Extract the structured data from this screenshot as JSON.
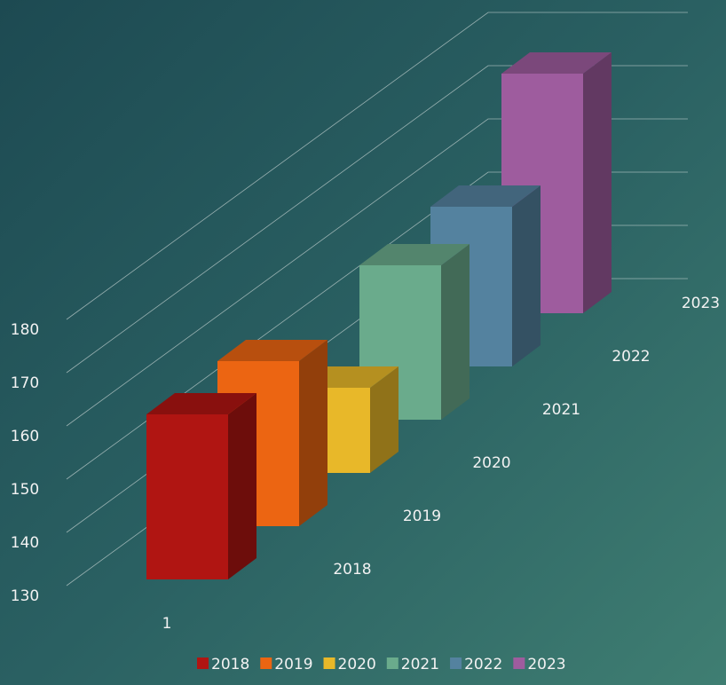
{
  "chart_data": {
    "type": "bar",
    "categories": [
      "1"
    ],
    "series": [
      {
        "name": "2018",
        "color": "#b01512",
        "values": [
          161
        ]
      },
      {
        "name": "2019",
        "color": "#ec6512",
        "values": [
          161
        ]
      },
      {
        "name": "2020",
        "color": "#e8b829",
        "values": [
          146
        ]
      },
      {
        "name": "2021",
        "color": "#6aab8c",
        "values": [
          159
        ]
      },
      {
        "name": "2022",
        "color": "#54829f",
        "values": [
          160
        ]
      },
      {
        "name": "2023",
        "color": "#9e5c9e",
        "values": [
          175
        ]
      }
    ],
    "ylim": [
      130,
      180
    ],
    "yticks": [
      130,
      140,
      150,
      160,
      170,
      180
    ],
    "grid": true,
    "legend": "bottom"
  }
}
